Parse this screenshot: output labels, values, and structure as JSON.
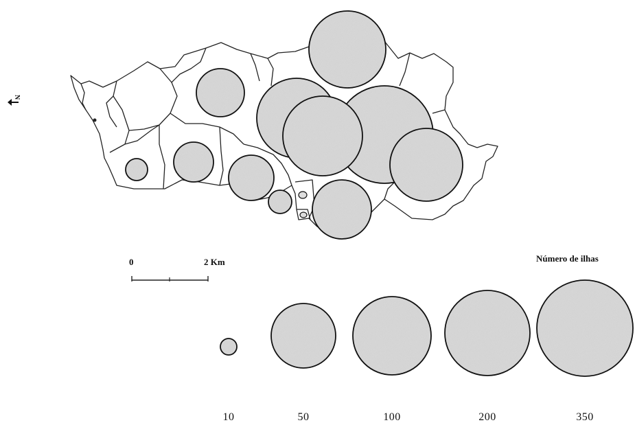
{
  "legend": {
    "title": "Número de ilhas",
    "items": [
      {
        "label": "10",
        "value": 10
      },
      {
        "label": "50",
        "value": 50
      },
      {
        "label": "100",
        "value": 100
      },
      {
        "label": "200",
        "value": 200
      },
      {
        "label": "350",
        "value": 350
      }
    ]
  },
  "scale_bar": {
    "start_label": "0",
    "end_label": "2 Km"
  },
  "north_arrow": {
    "label": "N",
    "icon": "north-arrow-icon"
  },
  "colors": {
    "bubble_fill": "#cfcfcf",
    "outline": "#111111",
    "background": "#ffffff"
  }
}
